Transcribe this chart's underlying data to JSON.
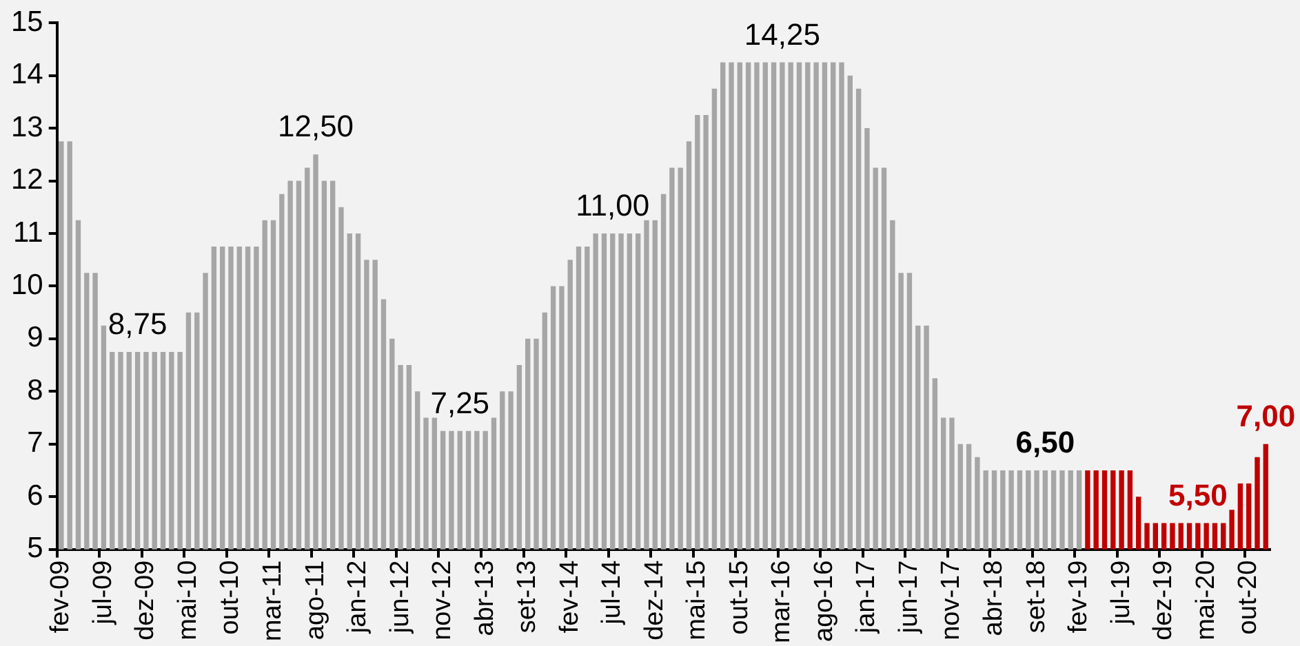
{
  "chart_data": {
    "type": "bar",
    "categories": [
      "fev-09",
      null,
      null,
      null,
      null,
      "jul-09",
      null,
      null,
      null,
      null,
      "dez-09",
      null,
      null,
      null,
      null,
      "mai-10",
      null,
      null,
      null,
      null,
      "out-10",
      null,
      null,
      null,
      null,
      "mar-11",
      null,
      null,
      null,
      null,
      "ago-11",
      null,
      null,
      null,
      null,
      "jan-12",
      null,
      null,
      null,
      null,
      "jun-12",
      null,
      null,
      null,
      null,
      "nov-12",
      null,
      null,
      null,
      null,
      "abr-13",
      null,
      null,
      null,
      null,
      "set-13",
      null,
      null,
      null,
      null,
      "fev-14",
      null,
      null,
      null,
      null,
      "jul-14",
      null,
      null,
      null,
      null,
      "dez-14",
      null,
      null,
      null,
      null,
      "mai-15",
      null,
      null,
      null,
      null,
      "out-15",
      null,
      null,
      null,
      null,
      "mar-16",
      null,
      null,
      null,
      null,
      "ago-16",
      null,
      null,
      null,
      null,
      "jan-17",
      null,
      null,
      null,
      null,
      "jun-17",
      null,
      null,
      null,
      null,
      "nov-17",
      null,
      null,
      null,
      null,
      "abr-18",
      null,
      null,
      null,
      null,
      "set-18",
      null,
      null,
      null,
      null,
      "fev-19",
      null,
      null,
      null,
      null,
      "jul-19",
      null,
      null,
      null,
      null,
      "dez-19",
      null,
      null,
      null,
      null,
      "mai-20",
      null,
      null,
      null,
      null,
      "out-20",
      null,
      null
    ],
    "values": [
      12.75,
      12.75,
      11.25,
      10.25,
      10.25,
      9.25,
      8.75,
      8.75,
      8.75,
      8.75,
      8.75,
      8.75,
      8.75,
      8.75,
      8.75,
      9.5,
      9.5,
      10.25,
      10.75,
      10.75,
      10.75,
      10.75,
      10.75,
      10.75,
      11.25,
      11.25,
      11.75,
      12.0,
      12.0,
      12.25,
      12.5,
      12.0,
      12.0,
      11.5,
      11.0,
      11.0,
      10.5,
      10.5,
      9.75,
      9.0,
      8.5,
      8.5,
      8.0,
      7.5,
      7.5,
      7.25,
      7.25,
      7.25,
      7.25,
      7.25,
      7.25,
      7.5,
      8.0,
      8.0,
      8.5,
      9.0,
      9.0,
      9.5,
      10.0,
      10.0,
      10.5,
      10.75,
      10.75,
      11.0,
      11.0,
      11.0,
      11.0,
      11.0,
      11.0,
      11.25,
      11.25,
      11.75,
      12.25,
      12.25,
      12.75,
      13.25,
      13.25,
      13.75,
      14.25,
      14.25,
      14.25,
      14.25,
      14.25,
      14.25,
      14.25,
      14.25,
      14.25,
      14.25,
      14.25,
      14.25,
      14.25,
      14.25,
      14.25,
      14.0,
      13.75,
      13.0,
      12.25,
      12.25,
      11.25,
      10.25,
      10.25,
      9.25,
      9.25,
      8.25,
      7.5,
      7.5,
      7.0,
      7.0,
      6.75,
      6.5,
      6.5,
      6.5,
      6.5,
      6.5,
      6.5,
      6.5,
      6.5,
      6.5,
      6.5,
      6.5,
      6.5,
      6.5,
      6.5,
      6.5,
      6.5,
      6.5,
      6.5,
      6.0,
      5.5,
      5.5,
      5.5,
      5.5,
      5.5,
      5.5,
      5.5,
      5.5,
      5.5,
      5.5,
      5.75,
      6.25,
      6.25,
      6.75,
      7.0
    ],
    "colors": [
      "#a6a6a6",
      "#a6a6a6",
      "#a6a6a6",
      "#a6a6a6",
      "#a6a6a6",
      "#a6a6a6",
      "#a6a6a6",
      "#a6a6a6",
      "#a6a6a6",
      "#a6a6a6",
      "#a6a6a6",
      "#a6a6a6",
      "#a6a6a6",
      "#a6a6a6",
      "#a6a6a6",
      "#a6a6a6",
      "#a6a6a6",
      "#a6a6a6",
      "#a6a6a6",
      "#a6a6a6",
      "#a6a6a6",
      "#a6a6a6",
      "#a6a6a6",
      "#a6a6a6",
      "#a6a6a6",
      "#a6a6a6",
      "#a6a6a6",
      "#a6a6a6",
      "#a6a6a6",
      "#a6a6a6",
      "#a6a6a6",
      "#a6a6a6",
      "#a6a6a6",
      "#a6a6a6",
      "#a6a6a6",
      "#a6a6a6",
      "#a6a6a6",
      "#a6a6a6",
      "#a6a6a6",
      "#a6a6a6",
      "#a6a6a6",
      "#a6a6a6",
      "#a6a6a6",
      "#a6a6a6",
      "#a6a6a6",
      "#a6a6a6",
      "#a6a6a6",
      "#a6a6a6",
      "#a6a6a6",
      "#a6a6a6",
      "#a6a6a6",
      "#a6a6a6",
      "#a6a6a6",
      "#a6a6a6",
      "#a6a6a6",
      "#a6a6a6",
      "#a6a6a6",
      "#a6a6a6",
      "#a6a6a6",
      "#a6a6a6",
      "#a6a6a6",
      "#a6a6a6",
      "#a6a6a6",
      "#a6a6a6",
      "#a6a6a6",
      "#a6a6a6",
      "#a6a6a6",
      "#a6a6a6",
      "#a6a6a6",
      "#a6a6a6",
      "#a6a6a6",
      "#a6a6a6",
      "#a6a6a6",
      "#a6a6a6",
      "#a6a6a6",
      "#a6a6a6",
      "#a6a6a6",
      "#a6a6a6",
      "#a6a6a6",
      "#a6a6a6",
      "#a6a6a6",
      "#a6a6a6",
      "#a6a6a6",
      "#a6a6a6",
      "#a6a6a6",
      "#a6a6a6",
      "#a6a6a6",
      "#a6a6a6",
      "#a6a6a6",
      "#a6a6a6",
      "#a6a6a6",
      "#a6a6a6",
      "#a6a6a6",
      "#a6a6a6",
      "#a6a6a6",
      "#a6a6a6",
      "#a6a6a6",
      "#a6a6a6",
      "#a6a6a6",
      "#a6a6a6",
      "#a6a6a6",
      "#a6a6a6",
      "#a6a6a6",
      "#a6a6a6",
      "#a6a6a6",
      "#a6a6a6",
      "#a6a6a6",
      "#a6a6a6",
      "#a6a6a6",
      "#a6a6a6",
      "#a6a6a6",
      "#a6a6a6",
      "#a6a6a6",
      "#a6a6a6",
      "#a6a6a6",
      "#a6a6a6",
      "#a6a6a6",
      "#a6a6a6",
      "#a6a6a6",
      "#a6a6a6",
      "#a6a6a6",
      "#c00000",
      "#c00000",
      "#c00000",
      "#c00000",
      "#c00000",
      "#c00000",
      "#c00000",
      "#c00000",
      "#c00000",
      "#c00000",
      "#c00000",
      "#c00000",
      "#c00000",
      "#c00000",
      "#c00000",
      "#c00000",
      "#c00000",
      "#c00000",
      "#c00000",
      "#c00000",
      "#c00000",
      "#c00000"
    ],
    "ylim": [
      5,
      15
    ],
    "yticks": [
      5,
      6,
      7,
      8,
      9,
      10,
      11,
      12,
      13,
      14,
      15
    ],
    "annotations": [
      {
        "text": "8,75",
        "y": 8.75
      },
      {
        "text": "12,50",
        "y": 12.5
      },
      {
        "text": "7,25",
        "y": 7.25
      },
      {
        "text": "11,00",
        "y": 11.0
      },
      {
        "text": "14,25",
        "y": 14.25
      },
      {
        "text": "6,50",
        "y": 6.5
      },
      {
        "text": "5,50",
        "y": 5.5
      },
      {
        "text": "7,00",
        "y": 7.0
      }
    ]
  }
}
